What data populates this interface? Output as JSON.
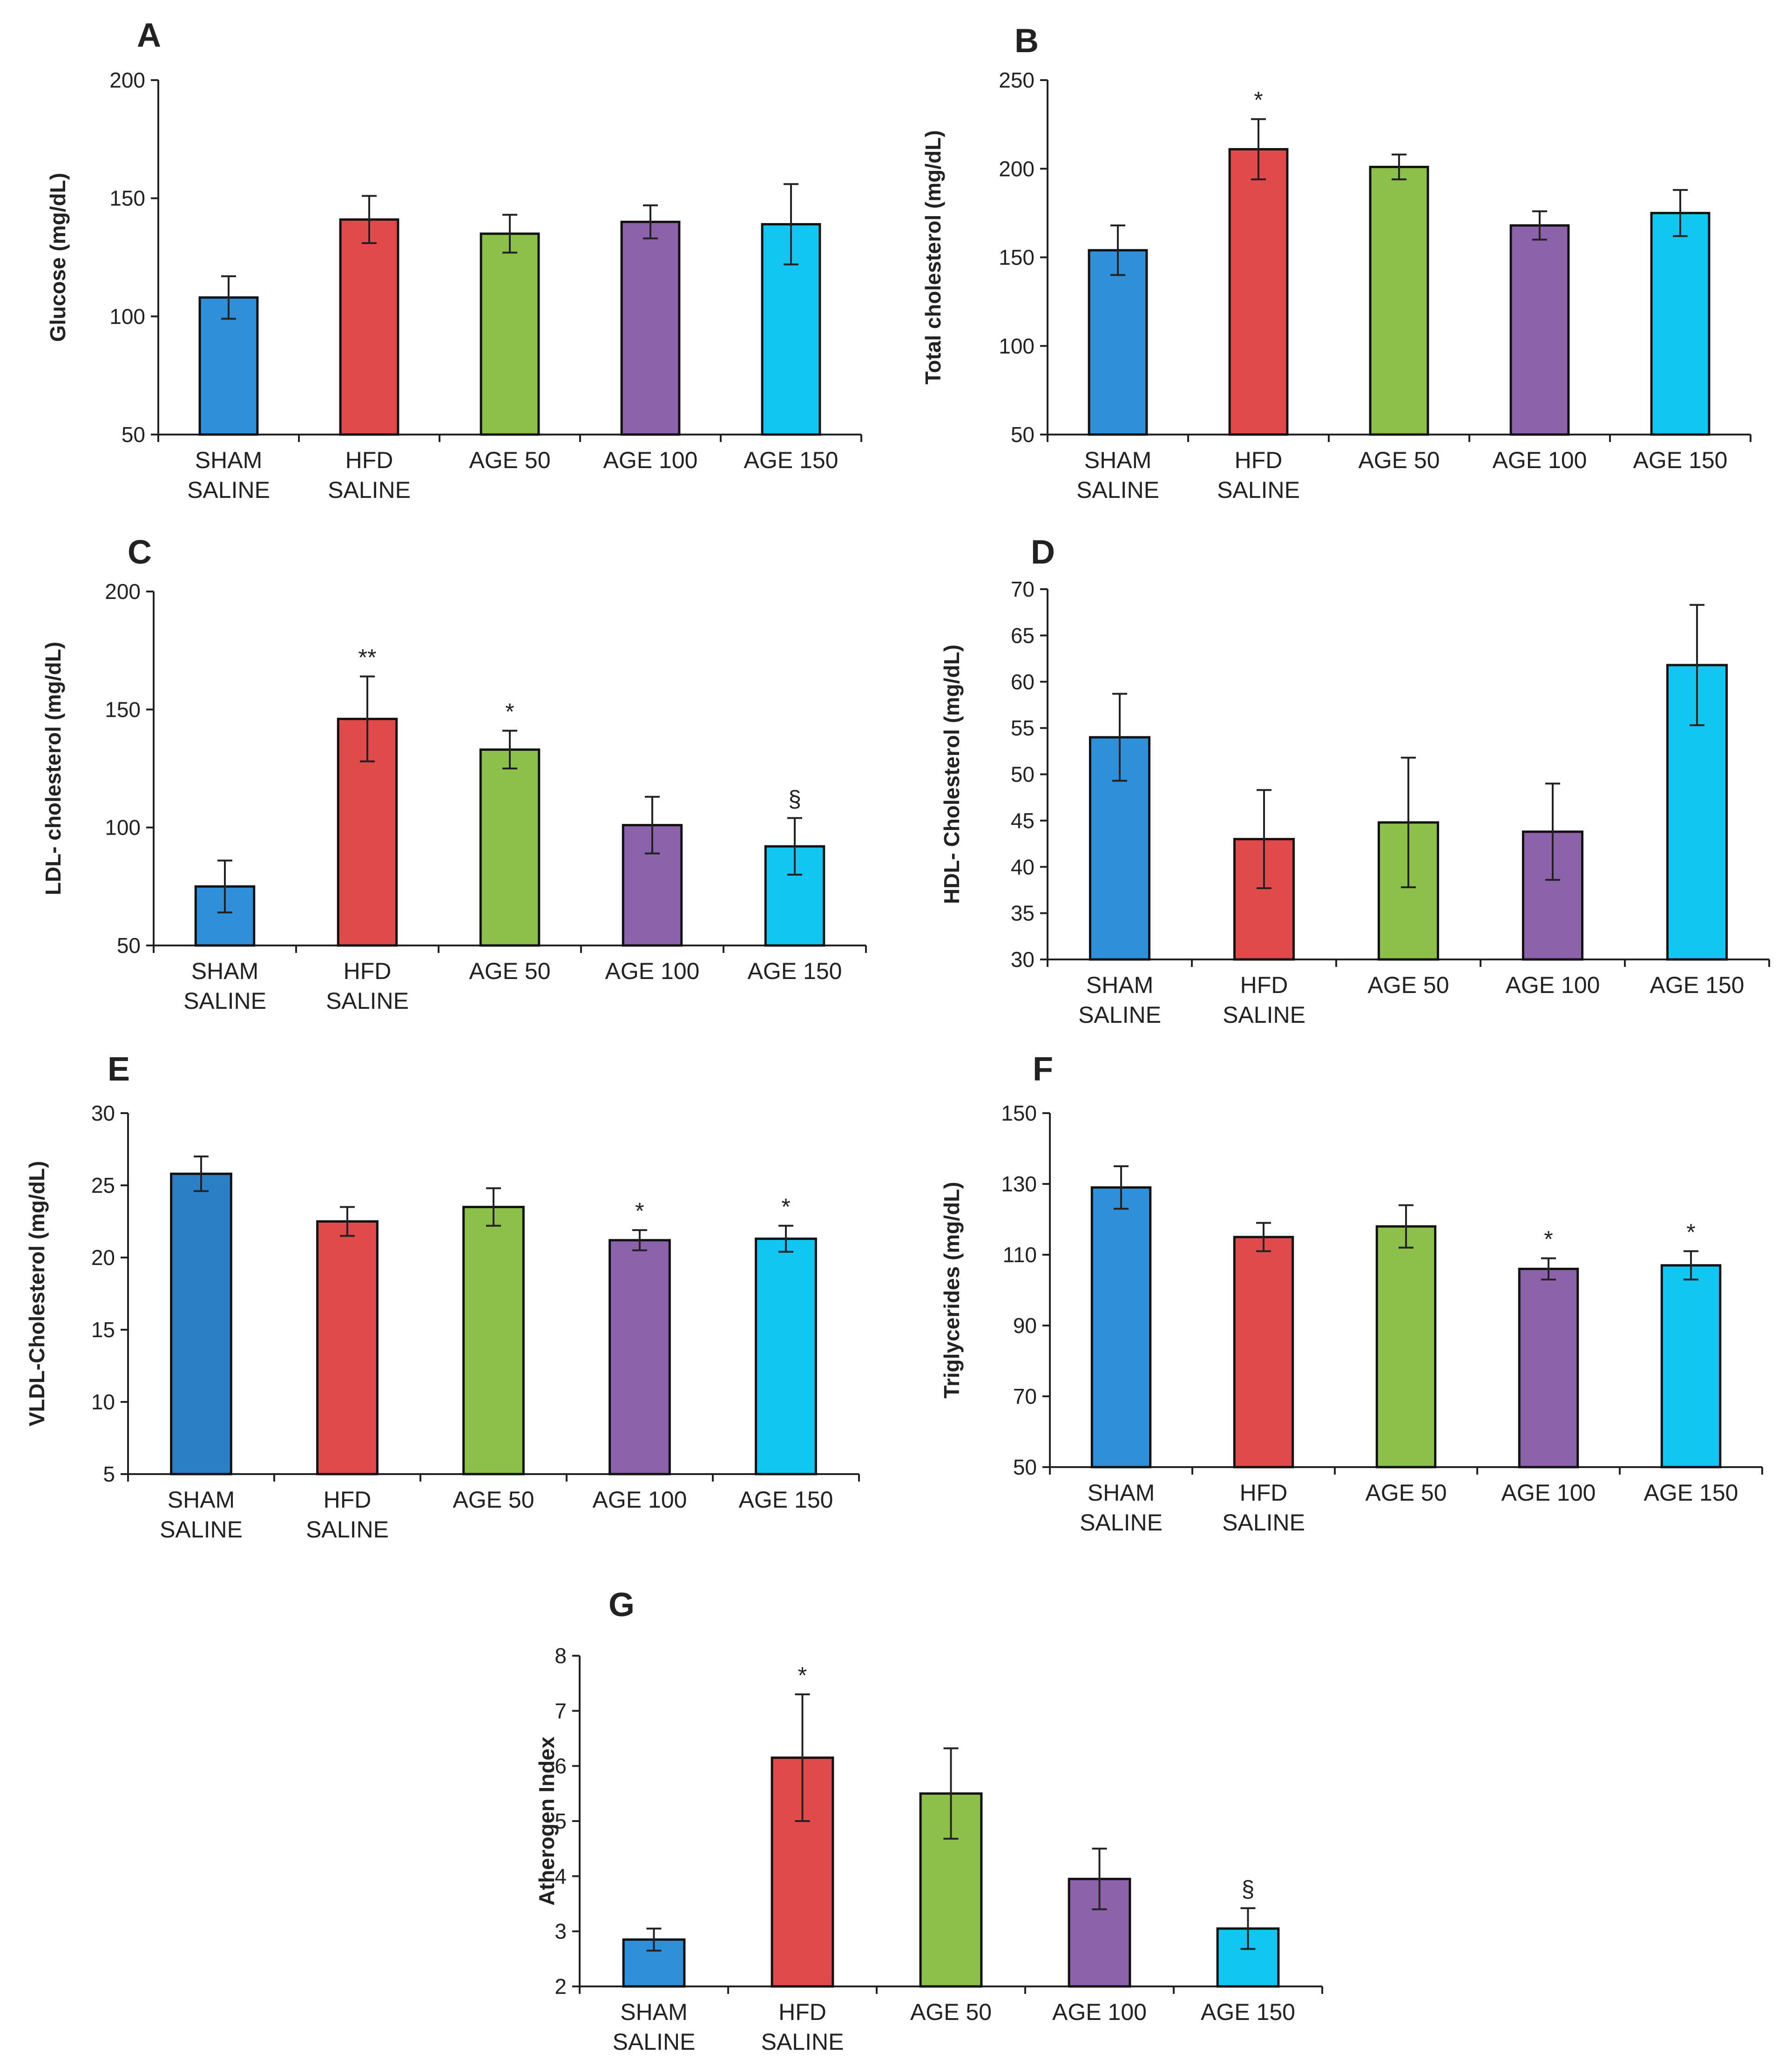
{
  "colors": {
    "sham": "#2f8fd8",
    "sham_e": "#2b7fc4",
    "hfd": "#e04a4a",
    "age50": "#8dc04a",
    "age100": "#8c62aa",
    "age150": "#12c6f2"
  },
  "chart_data": [
    {
      "type": "bar",
      "panel": "A",
      "ylabel": "Glucose (mg/dL)",
      "ylim": [
        50,
        200
      ],
      "yticks": [
        50,
        100,
        150,
        200
      ],
      "categories": [
        [
          "SHAM",
          "SALINE"
        ],
        [
          "HFD",
          "SALINE"
        ],
        [
          "AGE 50"
        ],
        [
          "AGE 100"
        ],
        [
          "AGE 150"
        ]
      ],
      "values": [
        108,
        141,
        135,
        140,
        139
      ],
      "errors": [
        9,
        10,
        8,
        7,
        17
      ],
      "significance": [
        "",
        "",
        "",
        "",
        ""
      ],
      "colors": [
        "sham",
        "hfd",
        "age50",
        "age100",
        "age150"
      ]
    },
    {
      "type": "bar",
      "panel": "B",
      "ylabel": "Total cholesterol (mg/dL)",
      "ylim": [
        50,
        250
      ],
      "yticks": [
        50,
        100,
        150,
        200,
        250
      ],
      "categories": [
        [
          "SHAM",
          "SALINE"
        ],
        [
          "HFD",
          "SALINE"
        ],
        [
          "AGE 50"
        ],
        [
          "AGE  100"
        ],
        [
          "AGE 150"
        ]
      ],
      "values": [
        154,
        211,
        201,
        168,
        175
      ],
      "errors": [
        14,
        17,
        7,
        8,
        13
      ],
      "significance": [
        "",
        "*",
        "",
        "",
        ""
      ],
      "colors": [
        "sham",
        "hfd",
        "age50",
        "age100",
        "age150"
      ]
    },
    {
      "type": "bar",
      "panel": "C",
      "ylabel": "LDL- cholesterol (mg/dL)",
      "ylim": [
        50,
        200
      ],
      "yticks": [
        50,
        100,
        150,
        200
      ],
      "categories": [
        [
          "SHAM",
          "SALINE"
        ],
        [
          "HFD",
          "SALINE"
        ],
        [
          "AGE 50"
        ],
        [
          "AGE 100"
        ],
        [
          "AGE 150"
        ]
      ],
      "values": [
        75,
        146,
        133,
        101,
        92
      ],
      "errors": [
        11,
        18,
        8,
        12,
        12
      ],
      "significance": [
        "",
        "**",
        "*",
        "",
        "§"
      ],
      "colors": [
        "sham",
        "hfd",
        "age50",
        "age100",
        "age150"
      ]
    },
    {
      "type": "bar",
      "panel": "D",
      "ylabel": "HDL- Cholesterol (mg/dL)",
      "ylim": [
        30,
        70
      ],
      "yticks": [
        30,
        35,
        40,
        45,
        50,
        55,
        60,
        65,
        70
      ],
      "categories": [
        [
          "SHAM",
          "SALINE"
        ],
        [
          "HFD",
          "SALINE"
        ],
        [
          "AGE 50"
        ],
        [
          "AGE 100"
        ],
        [
          "AGE 150"
        ]
      ],
      "values": [
        54,
        43,
        44.8,
        43.8,
        61.8
      ],
      "errors": [
        4.7,
        5.3,
        7,
        5.2,
        6.5
      ],
      "significance": [
        "",
        "",
        "",
        "",
        ""
      ],
      "colors": [
        "sham",
        "hfd",
        "age50",
        "age100",
        "age150"
      ]
    },
    {
      "type": "bar",
      "panel": "E",
      "ylabel": "VLDL-Cholesterol (mg/dL)",
      "ylim": [
        5,
        30
      ],
      "yticks": [
        5,
        10,
        15,
        20,
        25,
        30
      ],
      "categories": [
        [
          "SHAM",
          "SALINE"
        ],
        [
          "HFD",
          "SALINE"
        ],
        [
          "AGE 50"
        ],
        [
          "AGE 100"
        ],
        [
          "AGE 150"
        ]
      ],
      "values": [
        25.8,
        22.5,
        23.5,
        21.2,
        21.3
      ],
      "errors": [
        1.2,
        1.0,
        1.3,
        0.7,
        0.9
      ],
      "significance": [
        "",
        "",
        "",
        "*",
        "*"
      ],
      "colors": [
        "sham_e",
        "hfd",
        "age50",
        "age100",
        "age150"
      ]
    },
    {
      "type": "bar",
      "panel": "F",
      "ylabel": "Triglycerides (mg/dL)",
      "ylim": [
        50,
        150
      ],
      "yticks": [
        50,
        70,
        90,
        110,
        130,
        150
      ],
      "categories": [
        [
          "SHAM",
          "SALINE"
        ],
        [
          "HFD",
          "SALINE"
        ],
        [
          "AGE 50"
        ],
        [
          "AGE 100"
        ],
        [
          "AGE 150"
        ]
      ],
      "values": [
        129,
        115,
        118,
        106,
        107
      ],
      "errors": [
        6,
        4,
        6,
        3,
        4
      ],
      "significance": [
        "",
        "",
        "",
        "*",
        "*"
      ],
      "colors": [
        "sham",
        "hfd",
        "age50",
        "age100",
        "age150"
      ]
    },
    {
      "type": "bar",
      "panel": "G",
      "ylabel": "Atherogen Index",
      "ylim": [
        2,
        8
      ],
      "yticks": [
        2,
        3,
        4,
        5,
        6,
        7,
        8
      ],
      "categories": [
        [
          "SHAM",
          "SALINE"
        ],
        [
          "HFD",
          "SALINE"
        ],
        [
          "AGE 50"
        ],
        [
          "AGE 100"
        ],
        [
          "AGE 150"
        ]
      ],
      "values": [
        2.85,
        6.15,
        5.5,
        3.95,
        3.05
      ],
      "errors": [
        0.2,
        1.15,
        0.82,
        0.55,
        0.37
      ],
      "significance": [
        "",
        "*",
        "",
        "",
        "§"
      ],
      "colors": [
        "sham",
        "hfd",
        "age50",
        "age100",
        "age150"
      ]
    }
  ]
}
